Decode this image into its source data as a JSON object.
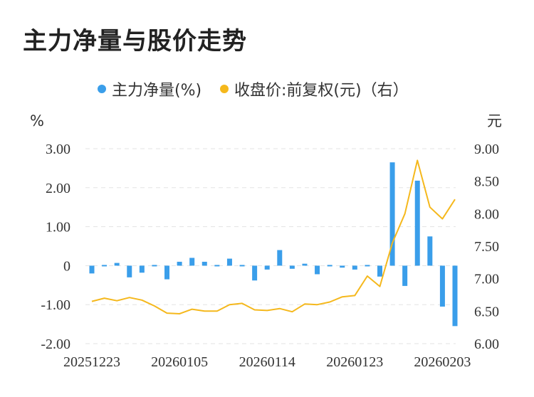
{
  "title": "主力净量与股价走势",
  "chart_data": {
    "type": "bar+line",
    "left_unit": "%",
    "right_unit": "元",
    "left_ticks": [
      "3.00",
      "2.00",
      "1.00",
      "0",
      "-1.00",
      "-2.00"
    ],
    "right_ticks": [
      "9.00",
      "8.50",
      "8.00",
      "7.50",
      "7.00",
      "6.50",
      "6.00"
    ],
    "left_range": [
      -2,
      3
    ],
    "right_range": [
      6,
      9
    ],
    "x_labels": [
      {
        "index": 0,
        "text": "20251223"
      },
      {
        "index": 7,
        "text": "20260105"
      },
      {
        "index": 14,
        "text": "20260114"
      },
      {
        "index": 21,
        "text": "20260123"
      },
      {
        "index": 28,
        "text": "20260203"
      }
    ],
    "series": [
      {
        "name": "主力净量(%)",
        "kind": "bar",
        "color": "#3a9eea",
        "values": [
          -0.2,
          -0.02,
          0.07,
          -0.3,
          -0.18,
          -0.03,
          -0.35,
          0.1,
          0.2,
          0.1,
          -0.02,
          0.18,
          -0.02,
          -0.38,
          -0.1,
          0.4,
          -0.08,
          0.05,
          -0.22,
          0.02,
          -0.05,
          -0.1,
          -0.02,
          -0.28,
          2.65,
          -0.52,
          2.18,
          0.75,
          -1.05,
          -1.55
        ]
      },
      {
        "name": "收盘价:前复权(元)（右）",
        "kind": "line",
        "color": "#f5b81c",
        "values": [
          6.65,
          6.7,
          6.66,
          6.71,
          6.67,
          6.58,
          6.47,
          6.46,
          6.53,
          6.5,
          6.5,
          6.6,
          6.62,
          6.52,
          6.51,
          6.54,
          6.49,
          6.61,
          6.6,
          6.64,
          6.72,
          6.74,
          7.04,
          6.88,
          7.55,
          8.0,
          8.82,
          8.1,
          7.92,
          8.22
        ]
      }
    ]
  }
}
